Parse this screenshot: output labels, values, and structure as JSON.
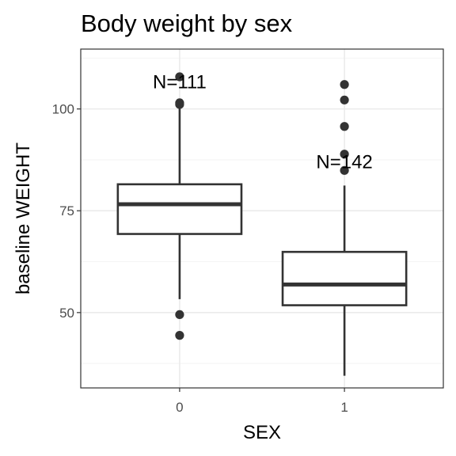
{
  "chart_data": {
    "type": "box",
    "title": "Body weight by sex",
    "xlabel": "SEX",
    "ylabel": "baseline WEIGHT",
    "categories": [
      "0",
      "1"
    ],
    "ylim": [
      31.5,
      114.7
    ],
    "yticks": [
      50,
      75,
      100
    ],
    "grid": true,
    "boxes": [
      {
        "category": "0",
        "n_label": "N=111",
        "whisker_low": 53.3,
        "q1": 69.3,
        "median": 76.6,
        "q3": 81.5,
        "whisker_high": 100.8,
        "outliers": [
          107.9,
          101.5,
          101.1,
          49.5,
          44.4
        ]
      },
      {
        "category": "1",
        "n_label": "N=142",
        "whisker_low": 34.5,
        "q1": 51.8,
        "median": 56.9,
        "q3": 64.9,
        "whisker_high": 81.2,
        "outliers": [
          106.0,
          102.2,
          95.7,
          88.9,
          84.9
        ]
      }
    ]
  }
}
